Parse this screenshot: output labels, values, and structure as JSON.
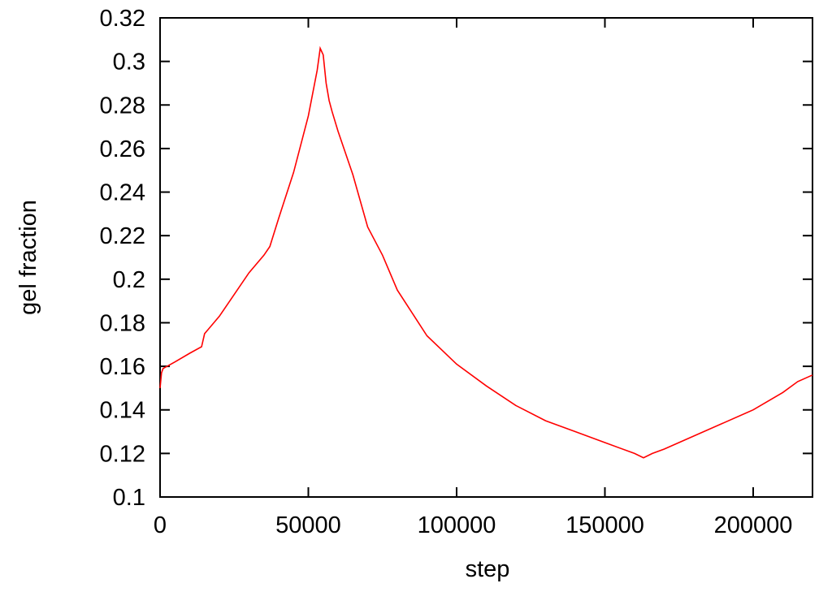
{
  "chart_data": {
    "type": "line",
    "title": "",
    "xlabel": "step",
    "ylabel": "gel fraction",
    "xlim": [
      0,
      220000
    ],
    "ylim": [
      0.1,
      0.32
    ],
    "grid": false,
    "legend": "none",
    "x_ticks": [
      "0",
      "50000",
      "100000",
      "150000",
      "200000"
    ],
    "x_tick_values": [
      0,
      50000,
      100000,
      150000,
      200000
    ],
    "y_ticks": [
      "0.1",
      "0.12",
      "0.14",
      "0.16",
      "0.18",
      "0.2",
      "0.22",
      "0.24",
      "0.26",
      "0.28",
      "0.3",
      "0.32"
    ],
    "y_tick_values": [
      0.1,
      0.12,
      0.14,
      0.16,
      0.18,
      0.2,
      0.22,
      0.24,
      0.26,
      0.28,
      0.3,
      0.32
    ],
    "series": [
      {
        "color": "#ff0000",
        "x": [
          0,
          500,
          1000,
          5000,
          10000,
          14000,
          15000,
          20000,
          25000,
          30000,
          35000,
          37000,
          40000,
          45000,
          50000,
          53000,
          54000,
          55000,
          56000,
          57000,
          58000,
          60000,
          65000,
          70000,
          75000,
          80000,
          90000,
          100000,
          110000,
          120000,
          130000,
          140000,
          150000,
          160000,
          163000,
          166000,
          170000,
          180000,
          190000,
          200000,
          210000,
          215000,
          220000
        ],
        "y": [
          0.15,
          0.157,
          0.159,
          0.162,
          0.166,
          0.169,
          0.175,
          0.183,
          0.193,
          0.203,
          0.211,
          0.215,
          0.228,
          0.249,
          0.275,
          0.296,
          0.306,
          0.303,
          0.29,
          0.282,
          0.277,
          0.268,
          0.248,
          0.224,
          0.211,
          0.195,
          0.174,
          0.161,
          0.151,
          0.142,
          0.135,
          0.13,
          0.125,
          0.12,
          0.118,
          0.12,
          0.122,
          0.128,
          0.134,
          0.14,
          0.148,
          0.153,
          0.156
        ]
      }
    ]
  }
}
